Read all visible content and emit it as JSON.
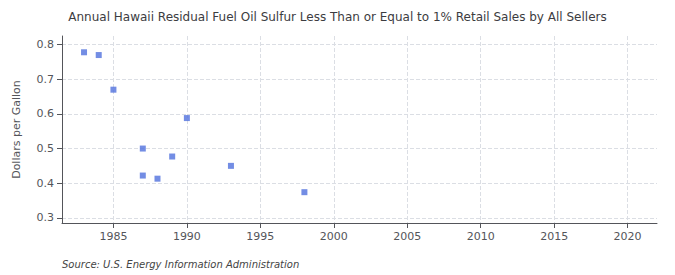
{
  "chart_data": {
    "type": "scatter",
    "title": "Annual Hawaii Residual Fuel Oil Sulfur Less Than or Equal to 1% Retail Sales by All Sellers",
    "ylabel": "Dollars per Gallon",
    "source": "Source: U.S. Energy Information Administration",
    "x": [
      1983,
      1984,
      1985,
      1987,
      1987,
      1988,
      1989,
      1990,
      1993,
      1998
    ],
    "values": [
      0.778,
      0.77,
      0.67,
      0.422,
      0.5,
      0.413,
      0.477,
      0.588,
      0.45,
      0.374
    ],
    "marker": "square",
    "xlim": [
      1981.5,
      2022
    ],
    "ylim": [
      0.285,
      0.825
    ],
    "xticks": [
      1985,
      1990,
      1995,
      2000,
      2005,
      2010,
      2015,
      2020
    ],
    "yticks": [
      0.3,
      0.4,
      0.5,
      0.6,
      0.7,
      0.8
    ],
    "grid": true
  }
}
